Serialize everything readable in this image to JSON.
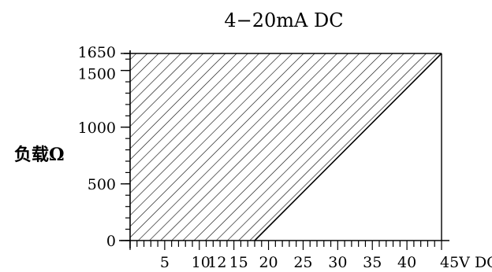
{
  "chart_data": {
    "type": "area",
    "title": "4−20mA DC",
    "ylabel": "负载Ω",
    "xlabel": "",
    "x_ticks": [
      {
        "value": 5,
        "label": "5"
      },
      {
        "value": 10,
        "label": "10"
      },
      {
        "value": 12,
        "label": "12"
      },
      {
        "value": 15,
        "label": "15"
      },
      {
        "value": 20,
        "label": "20"
      },
      {
        "value": 25,
        "label": "25"
      },
      {
        "value": 30,
        "label": "30"
      },
      {
        "value": 35,
        "label": "35"
      },
      {
        "value": 40,
        "label": "40"
      },
      {
        "value": 45,
        "label": "45V DC"
      }
    ],
    "y_ticks": [
      {
        "value": 0,
        "label": "0"
      },
      {
        "value": 500,
        "label": "500"
      },
      {
        "value": 1000,
        "label": "1000"
      },
      {
        "value": 1500,
        "label": "1500"
      },
      {
        "value": 1650,
        "label": "1650"
      }
    ],
    "xlim": [
      0,
      45
    ],
    "ylim": [
      0,
      1650
    ],
    "boundary": {
      "x": [
        18,
        45
      ],
      "y": [
        0,
        1650
      ]
    },
    "region": "hatched area left of boundary line",
    "grid": false,
    "colors": {
      "line": "#000000",
      "background": "#ffffff"
    }
  }
}
